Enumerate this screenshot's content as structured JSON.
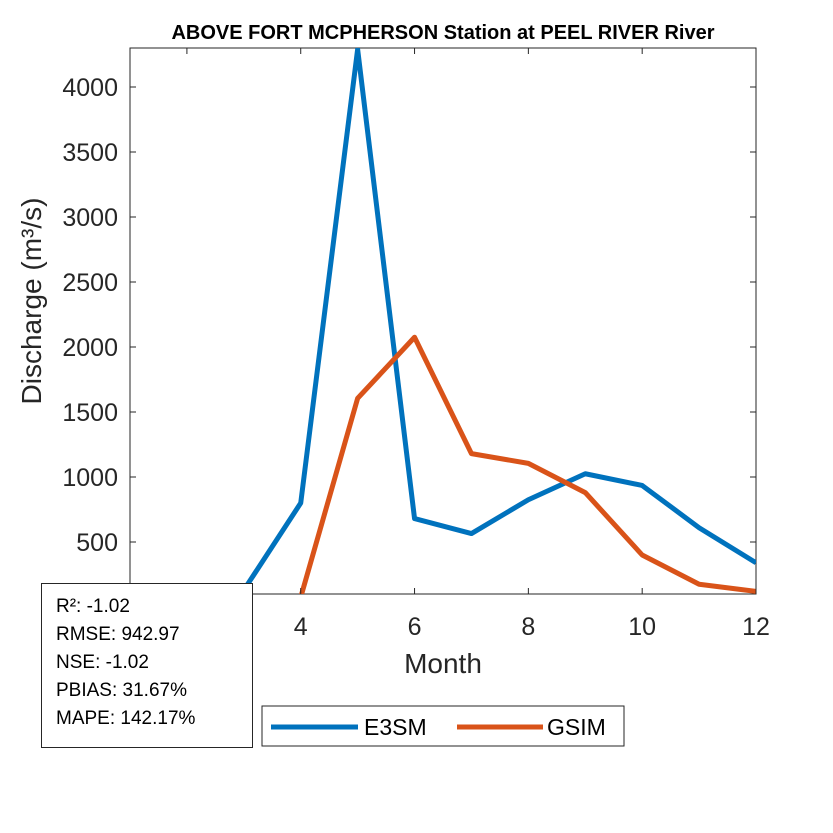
{
  "chart_data": {
    "type": "line",
    "title": "ABOVE FORT MCPHERSON  Station at  PEEL RIVER  River",
    "xlabel": "Month",
    "ylabel": "Discharge (m³/s)",
    "xlim": [
      1,
      12
    ],
    "ylim": [
      100,
      4300
    ],
    "x_ticks": [
      2,
      4,
      6,
      8,
      10,
      12
    ],
    "y_ticks": [
      500,
      1000,
      1500,
      2000,
      2500,
      3000,
      3500,
      4000
    ],
    "grid": false,
    "legend_position": "bottom-outside",
    "x": [
      1,
      2,
      3,
      4,
      5,
      6,
      7,
      8,
      9,
      10,
      11,
      12
    ],
    "series": [
      {
        "name": "E3SM",
        "color": "#0072BD",
        "values": [
          120,
          115,
          130,
          800,
          4290,
          680,
          565,
          825,
          1025,
          935,
          610,
          340
        ]
      },
      {
        "name": "GSIM",
        "color": "#D95319",
        "values": [
          60,
          55,
          65,
          75,
          1605,
          2075,
          1180,
          1105,
          880,
          400,
          175,
          120
        ]
      }
    ]
  },
  "stats": {
    "r2": "R²: -1.02",
    "rmse": "RMSE: 942.97",
    "nse": "NSE: -1.02",
    "pbias": "PBIAS: 31.67%",
    "mape": "MAPE: 142.17%"
  }
}
